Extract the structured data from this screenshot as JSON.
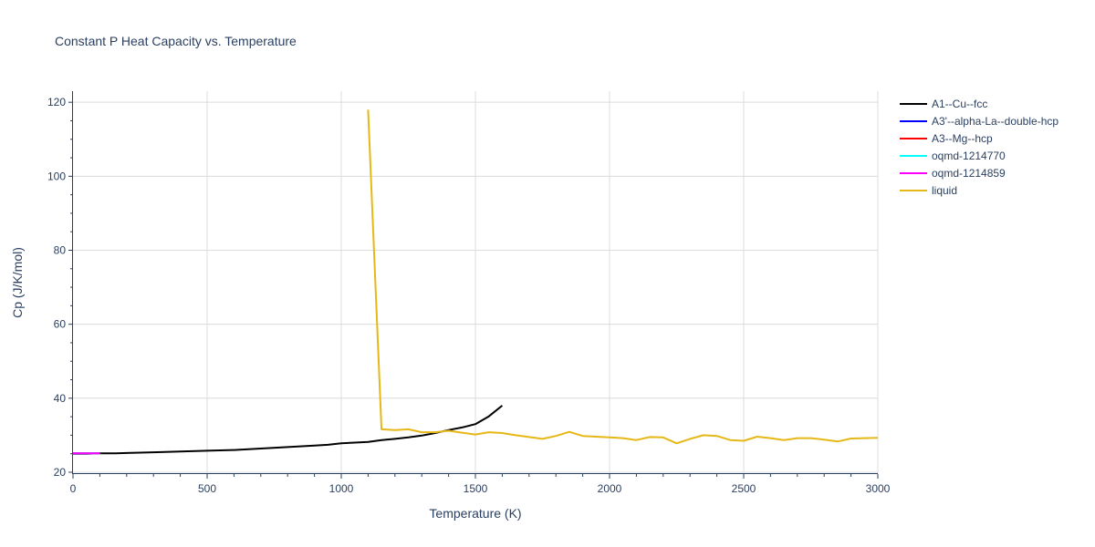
{
  "chart_data": {
    "type": "line",
    "title": "Constant P Heat Capacity vs. Temperature",
    "xlabel": "Temperature (K)",
    "ylabel": "Cp (J/K/mol)",
    "xlim": [
      0,
      3000
    ],
    "ylim": [
      19.5,
      123
    ],
    "xticks": [
      0,
      500,
      1000,
      1500,
      2000,
      2500,
      3000
    ],
    "xtick_labels": [
      "0",
      "500",
      "1000",
      "1500",
      "2000",
      "2500",
      "3000"
    ],
    "yticks": [
      20,
      40,
      60,
      80,
      100,
      120
    ],
    "ytick_labels": [
      "20",
      "40",
      "60",
      "80",
      "100",
      "120"
    ],
    "grid": true,
    "legend_position": "right",
    "series": [
      {
        "name": "A1--Cu--fcc",
        "color": "#000000",
        "x": [
          0,
          50,
          100,
          150,
          200,
          300,
          400,
          500,
          600,
          700,
          800,
          900,
          950,
          1000,
          1050,
          1100,
          1150,
          1200,
          1250,
          1300,
          1350,
          1400,
          1450,
          1500,
          1550,
          1600
        ],
        "y": [
          25.0,
          25.0,
          25.1,
          25.1,
          25.2,
          25.4,
          25.6,
          25.8,
          26.0,
          26.4,
          26.8,
          27.2,
          27.4,
          27.8,
          28.0,
          28.2,
          28.7,
          29.0,
          29.4,
          29.9,
          30.6,
          31.4,
          32.1,
          33.0,
          35.1,
          38.0
        ]
      },
      {
        "name": "A3'--alpha-La--double-hcp",
        "color": "#0000ff",
        "x": [
          0,
          50,
          100
        ],
        "y": [
          25.1,
          25.1,
          25.1
        ]
      },
      {
        "name": "A3--Mg--hcp",
        "color": "#ff0000",
        "x": [
          0,
          50,
          100
        ],
        "y": [
          25.1,
          25.1,
          25.1
        ]
      },
      {
        "name": "oqmd-1214770",
        "color": "#00ffff",
        "x": [
          0,
          50,
          100
        ],
        "y": [
          25.1,
          25.1,
          25.1
        ]
      },
      {
        "name": "oqmd-1214859",
        "color": "#ff00ff",
        "x": [
          0,
          50,
          100
        ],
        "y": [
          25.1,
          25.1,
          25.1
        ]
      },
      {
        "name": "liquid",
        "color": "#e6b817",
        "x": [
          1100,
          1150,
          1200,
          1250,
          1300,
          1350,
          1400,
          1450,
          1500,
          1550,
          1600,
          1650,
          1700,
          1750,
          1800,
          1850,
          1900,
          1950,
          2000,
          2050,
          2100,
          2150,
          2200,
          2250,
          2300,
          2350,
          2400,
          2450,
          2500,
          2550,
          2600,
          2650,
          2700,
          2750,
          2800,
          2850,
          2900,
          2950,
          3000
        ],
        "y": [
          118.0,
          31.6,
          31.4,
          31.6,
          30.8,
          30.8,
          31.2,
          30.7,
          30.2,
          30.8,
          30.6,
          30.0,
          29.5,
          29.0,
          29.8,
          30.9,
          29.8,
          29.6,
          29.4,
          29.2,
          28.7,
          29.5,
          29.4,
          27.8,
          29.0,
          30.0,
          29.8,
          28.7,
          28.5,
          29.6,
          29.2,
          28.7,
          29.2,
          29.2,
          28.8,
          28.3,
          29.1,
          29.2,
          29.3
        ]
      }
    ]
  }
}
